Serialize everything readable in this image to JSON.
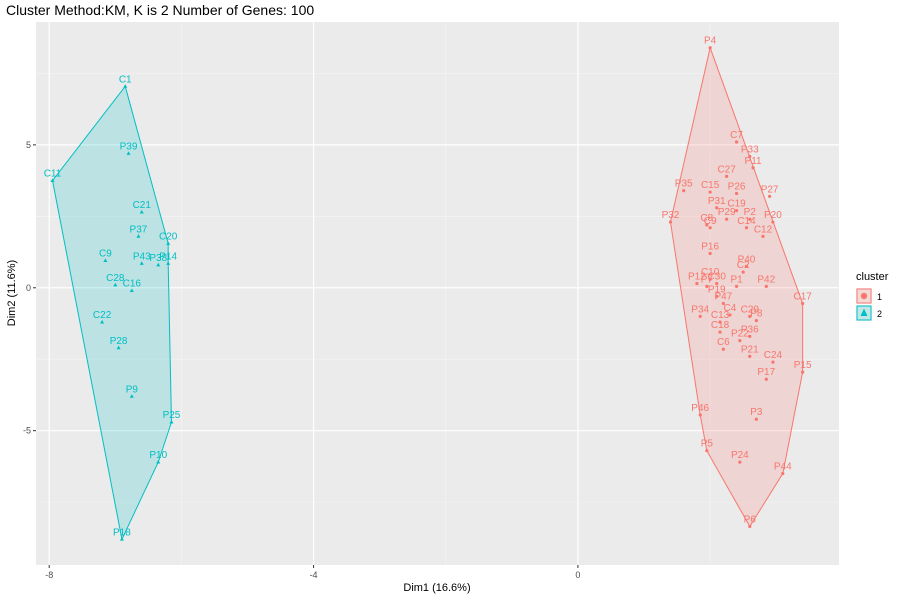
{
  "chart_data": {
    "type": "scatter",
    "title": "Cluster Method:KM, K is 2 Number of Genes: 100",
    "xlabel": "Dim1 (16.6%)",
    "ylabel": "Dim2 (11.6%)",
    "xlim": [
      -8.2,
      3.95
    ],
    "ylim": [
      -9.7,
      9.3
    ],
    "x_ticks": [
      -8,
      -4,
      0
    ],
    "x_tick_labels": [
      "-8",
      "-4",
      "0"
    ],
    "y_ticks": [
      5,
      0,
      -5
    ],
    "y_tick_labels": [
      "5",
      "0",
      "-5"
    ],
    "grid": true,
    "legend": {
      "title": "cluster",
      "position": "right",
      "items": [
        {
          "label": "1",
          "color": "#F8766D",
          "shape": "circle"
        },
        {
          "label": "2",
          "color": "#00BFC4",
          "shape": "triangle"
        }
      ]
    },
    "clusters": [
      {
        "id": "1",
        "color": "#F8766D",
        "hull": [
          "P4",
          "C17",
          "P15",
          "P44",
          "P6",
          "P5",
          "P46",
          "P32"
        ],
        "points": [
          {
            "label": "P4",
            "x": 2.0,
            "y": 8.4
          },
          {
            "label": "C7",
            "x": 2.4,
            "y": 5.1
          },
          {
            "label": "P33",
            "x": 2.6,
            "y": 4.6
          },
          {
            "label": "P11",
            "x": 2.65,
            "y": 4.2
          },
          {
            "label": "C27",
            "x": 2.25,
            "y": 3.9
          },
          {
            "label": "P35",
            "x": 1.6,
            "y": 3.4
          },
          {
            "label": "C15",
            "x": 2.0,
            "y": 3.35
          },
          {
            "label": "P26",
            "x": 2.4,
            "y": 3.3
          },
          {
            "label": "P27",
            "x": 2.9,
            "y": 3.2
          },
          {
            "label": "P31",
            "x": 2.1,
            "y": 2.8
          },
          {
            "label": "C19",
            "x": 2.4,
            "y": 2.7
          },
          {
            "label": "P29",
            "x": 2.25,
            "y": 2.4
          },
          {
            "label": "P2",
            "x": 2.6,
            "y": 2.4
          },
          {
            "label": "C8",
            "x": 1.95,
            "y": 2.2
          },
          {
            "label": "C9",
            "x": 2.0,
            "y": 2.1
          },
          {
            "label": "P32",
            "x": 1.4,
            "y": 2.3
          },
          {
            "label": "P20",
            "x": 2.95,
            "y": 2.3
          },
          {
            "label": "C14",
            "x": 2.55,
            "y": 2.1
          },
          {
            "label": "C12",
            "x": 2.8,
            "y": 1.8
          },
          {
            "label": "P16",
            "x": 2.0,
            "y": 1.2
          },
          {
            "label": "P40",
            "x": 2.55,
            "y": 0.75
          },
          {
            "label": "C2",
            "x": 2.5,
            "y": 0.55
          },
          {
            "label": "P12",
            "x": 1.8,
            "y": 0.15
          },
          {
            "label": "C10",
            "x": 2.0,
            "y": 0.3
          },
          {
            "label": "P7",
            "x": 1.95,
            "y": 0.05
          },
          {
            "label": "C30",
            "x": 2.1,
            "y": 0.15
          },
          {
            "label": "P1",
            "x": 2.4,
            "y": 0.05
          },
          {
            "label": "P42",
            "x": 2.85,
            "y": 0.05
          },
          {
            "label": "P19",
            "x": 2.1,
            "y": -0.3
          },
          {
            "label": "P47",
            "x": 2.2,
            "y": -0.55
          },
          {
            "label": "C17",
            "x": 3.4,
            "y": -0.55
          },
          {
            "label": "P34",
            "x": 1.85,
            "y": -1.0
          },
          {
            "label": "C4",
            "x": 2.3,
            "y": -0.95
          },
          {
            "label": "C29",
            "x": 2.6,
            "y": -1.0
          },
          {
            "label": "C13",
            "x": 2.15,
            "y": -1.2
          },
          {
            "label": "P8",
            "x": 2.7,
            "y": -1.15
          },
          {
            "label": "C18",
            "x": 2.15,
            "y": -1.55
          },
          {
            "label": "P36",
            "x": 2.6,
            "y": -1.7
          },
          {
            "label": "P22",
            "x": 2.45,
            "y": -1.85
          },
          {
            "label": "C6",
            "x": 2.2,
            "y": -2.15
          },
          {
            "label": "P21",
            "x": 2.6,
            "y": -2.4
          },
          {
            "label": "C24",
            "x": 2.95,
            "y": -2.6
          },
          {
            "label": "P17",
            "x": 2.85,
            "y": -3.2
          },
          {
            "label": "P15",
            "x": 3.4,
            "y": -2.95
          },
          {
            "label": "P46",
            "x": 1.85,
            "y": -4.45
          },
          {
            "label": "P3",
            "x": 2.7,
            "y": -4.6
          },
          {
            "label": "P5",
            "x": 1.95,
            "y": -5.7
          },
          {
            "label": "P24",
            "x": 2.45,
            "y": -6.1
          },
          {
            "label": "P44",
            "x": 3.1,
            "y": -6.5
          },
          {
            "label": "P6",
            "x": 2.6,
            "y": -8.35
          }
        ]
      },
      {
        "id": "2",
        "color": "#00BFC4",
        "hull": [
          "C1",
          "C20",
          "P14",
          "P25",
          "P10",
          "P18",
          "C11"
        ],
        "points": [
          {
            "label": "C1",
            "x": -6.85,
            "y": 7.05
          },
          {
            "label": "P39",
            "x": -6.8,
            "y": 4.7
          },
          {
            "label": "C11",
            "x": -7.95,
            "y": 3.75
          },
          {
            "label": "C21",
            "x": -6.6,
            "y": 2.65
          },
          {
            "label": "P37",
            "x": -6.65,
            "y": 1.8
          },
          {
            "label": "C20",
            "x": -6.2,
            "y": 1.55
          },
          {
            "label": "C9",
            "x": -7.15,
            "y": 0.95
          },
          {
            "label": "P43",
            "x": -6.6,
            "y": 0.85
          },
          {
            "label": "P38",
            "x": -6.35,
            "y": 0.8
          },
          {
            "label": "P14",
            "x": -6.2,
            "y": 0.85
          },
          {
            "label": "C28",
            "x": -7.0,
            "y": 0.1
          },
          {
            "label": "C16",
            "x": -6.75,
            "y": -0.1
          },
          {
            "label": "C22",
            "x": -7.2,
            "y": -1.2
          },
          {
            "label": "P28",
            "x": -6.95,
            "y": -2.1
          },
          {
            "label": "P9",
            "x": -6.75,
            "y": -3.8
          },
          {
            "label": "P25",
            "x": -6.15,
            "y": -4.7
          },
          {
            "label": "P10",
            "x": -6.35,
            "y": -6.1
          },
          {
            "label": "P18",
            "x": -6.9,
            "y": -8.8
          }
        ]
      }
    ]
  }
}
